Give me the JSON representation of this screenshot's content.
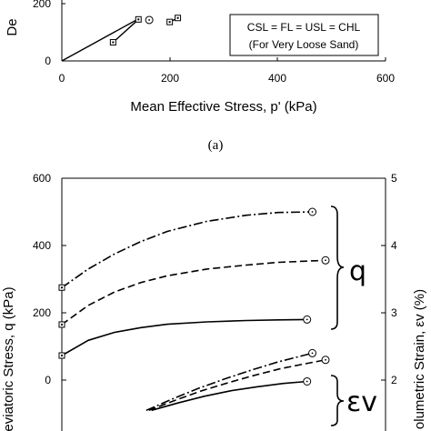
{
  "chart_data": [
    {
      "type": "line",
      "panel": "top",
      "title": "",
      "caption": "(a)",
      "xlabel": "Mean Effective Stress, p' (kPa)",
      "ylabel_fragment": "De",
      "xlim": [
        0,
        600
      ],
      "x_ticks": [
        "0",
        "200",
        "400",
        "600"
      ],
      "y_ticks": [
        "0",
        "200"
      ],
      "annotation": [
        "CSL = FL = USL = CHL",
        "(For Very Loose Sand)"
      ],
      "series": [
        {
          "marker": "none",
          "x": [
            0,
            145
          ],
          "y": [
            0,
            150
          ]
        },
        {
          "marker": "square",
          "x": [
            95,
            142
          ],
          "y": [
            65,
            145
          ]
        },
        {
          "marker": "square",
          "x": [
            200,
            215
          ],
          "y": [
            136,
            150
          ]
        }
      ],
      "circle_points": [
        {
          "x": 162,
          "y": 143
        }
      ]
    },
    {
      "type": "line",
      "panel": "bottom",
      "ylabel_left": "eviatoric Stress, q (kPa)",
      "ylabel_right": "olumetric Strain, εv (%)",
      "ylim_left": [
        -200,
        600
      ],
      "ylim_right": [
        1,
        5
      ],
      "y_ticks_left": [
        "0",
        "200",
        "400",
        "600"
      ],
      "y_ticks_right": [
        "2",
        "3",
        "4",
        "5"
      ],
      "group_labels": [
        "q",
        "εv"
      ],
      "series": [
        {
          "group": "q",
          "style": "dash-dot",
          "x": [
            0,
            0.1,
            0.2,
            0.3,
            0.4,
            0.55,
            0.7,
            0.82,
            0.95
          ],
          "y": [
            275,
            330,
            375,
            412,
            442,
            472,
            490,
            498,
            500
          ]
        },
        {
          "group": "q",
          "style": "dashed",
          "x": [
            0,
            0.1,
            0.2,
            0.3,
            0.4,
            0.55,
            0.7,
            0.82,
            1.0
          ],
          "y": [
            165,
            222,
            262,
            290,
            310,
            330,
            342,
            350,
            356
          ]
        },
        {
          "group": "q",
          "style": "solid",
          "x": [
            0,
            0.1,
            0.2,
            0.3,
            0.4,
            0.55,
            0.7,
            0.82,
            0.93
          ],
          "y": [
            73,
            118,
            142,
            156,
            166,
            173,
            177,
            179,
            180
          ]
        },
        {
          "group": "εv",
          "style": "dash-dot",
          "x": [
            0.32,
            0.42,
            0.52,
            0.62,
            0.72,
            0.82,
            0.9,
            0.95
          ],
          "y": [
            1.55,
            1.72,
            1.88,
            2.02,
            2.15,
            2.27,
            2.35,
            2.4
          ]
        },
        {
          "group": "εv",
          "style": "dashed",
          "x": [
            0.33,
            0.43,
            0.53,
            0.63,
            0.73,
            0.83,
            0.92,
            1.0
          ],
          "y": [
            1.55,
            1.7,
            1.84,
            1.96,
            2.07,
            2.17,
            2.24,
            2.3
          ]
        },
        {
          "group": "εv",
          "style": "solid",
          "x": [
            0.34,
            0.44,
            0.54,
            0.64,
            0.74,
            0.84,
            0.93
          ],
          "y": [
            1.55,
            1.66,
            1.76,
            1.84,
            1.9,
            1.95,
            1.98
          ]
        }
      ]
    }
  ]
}
